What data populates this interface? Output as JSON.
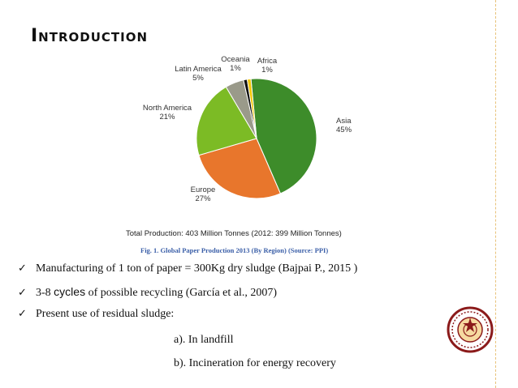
{
  "slide": {
    "title": "Introduction",
    "caption": "Fig. 1. Global Paper Production 2013 (By Region) (Source: PPI)",
    "bullets": [
      {
        "pre": "Manufacturing of 1 ton of paper = 300Kg dry sludge (Bajpai P., 2015 )",
        "emph": "",
        "post": ""
      },
      {
        "pre": "3-8 ",
        "emph": "cycles",
        "post": " of possible recycling (García et al., 2007)"
      },
      {
        "pre": "Present use of residual sludge:",
        "emph": "",
        "post": ""
      }
    ],
    "sub_items": [
      "a). In landfill",
      "b). Incineration for energy recovery"
    ]
  },
  "chart_data": {
    "type": "pie",
    "title": "",
    "total_label": "Total Production: 403 Million Tonnes (2012: 399 Million Tonnes)",
    "slices": [
      {
        "label": "Asia",
        "value_label": "45%",
        "value": 45,
        "color": "#3d8c2a"
      },
      {
        "label": "Europe",
        "value_label": "27%",
        "value": 27,
        "color": "#e8762c"
      },
      {
        "label": "North America",
        "value_label": "21%",
        "value": 21,
        "color": "#7cbb25"
      },
      {
        "label": "Latin America",
        "value_label": "5%",
        "value": 5,
        "color": "#9a9a8a"
      },
      {
        "label": "Oceania",
        "value_label": "1%",
        "value": 1,
        "color": "#111111"
      },
      {
        "label": "Africa",
        "value_label": "1%",
        "value": 1,
        "color": "#f2c500"
      }
    ]
  }
}
